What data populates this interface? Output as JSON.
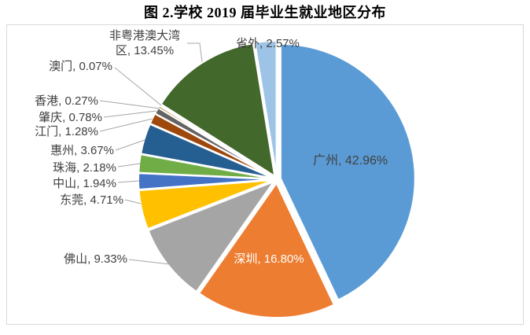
{
  "chart_data": {
    "type": "pie",
    "title": "图 2.学校 2019 届毕业生就业地区分布",
    "legend": "none",
    "label_format": "{label}, {value}%",
    "label_style": "data labels with leader lines; largest two slices labeled inside",
    "start_angle_deg": 0,
    "direction": "clockwise",
    "unit": "%",
    "slices": [
      {
        "label": "广州",
        "value": 42.96,
        "color": "#5B9BD5"
      },
      {
        "label": "深圳",
        "value": 16.8,
        "color": "#ED7D31"
      },
      {
        "label": "佛山",
        "value": 9.33,
        "color": "#A5A5A5"
      },
      {
        "label": "东莞",
        "value": 4.71,
        "color": "#FFC000"
      },
      {
        "label": "中山",
        "value": 1.94,
        "color": "#4472C4"
      },
      {
        "label": "珠海",
        "value": 2.18,
        "color": "#70AD47"
      },
      {
        "label": "惠州",
        "value": 3.67,
        "color": "#255E91"
      },
      {
        "label": "江门",
        "value": 1.28,
        "color": "#9E480E"
      },
      {
        "label": "肇庆",
        "value": 0.78,
        "color": "#636363"
      },
      {
        "label": "香港",
        "value": 0.27,
        "color": "#997300"
      },
      {
        "label": "澳门",
        "value": 0.07,
        "color": "#264478"
      },
      {
        "label": "非粤港澳大湾区",
        "value": 13.45,
        "color": "#43682B"
      },
      {
        "label": "省外",
        "value": 2.57,
        "color": "#9DC3E6"
      }
    ],
    "colors": {
      "label_text": "#404040",
      "inside_label_shenzhen_text": "#FFFFFF",
      "leader_line": "#A6A6A6",
      "plot_border": "#D9D9D9",
      "slice_separator": "#FFFFFF"
    }
  }
}
